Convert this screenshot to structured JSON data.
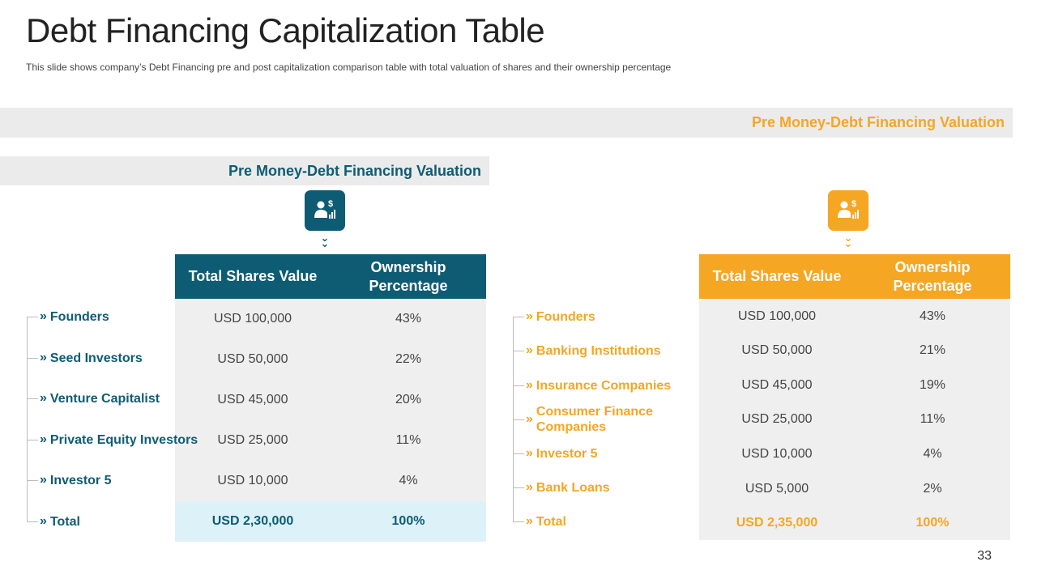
{
  "page": {
    "title": "Debt Financing Capitalization Table",
    "subtitle": "This slide shows company’s Debt Financing pre and post capitalization comparison table with total valuation  of shares and their ownership  percentage",
    "page_number": "33"
  },
  "colors": {
    "teal": "#0e5c73",
    "orange": "#f5a623",
    "band_gray": "#ebebeb",
    "table_gray": "#efefef",
    "total_teal_bg": "#dcf2f8"
  },
  "bands": {
    "top": "Pre Money-Debt Financing Valuation",
    "left": "Pre Money-Debt Financing Valuation"
  },
  "icons": {
    "left": "investor-dollar-chart-icon",
    "right": "investor-dollar-chart-icon",
    "chevron": "double-chevron-down-icon",
    "bullet": "double-chevron-right-icon"
  },
  "left_table": {
    "headers": [
      "Total Shares Value",
      "Ownership Percentage"
    ],
    "rows": [
      {
        "label": "Founders",
        "value": "USD 100,000",
        "pct": "43%"
      },
      {
        "label": "Seed Investors",
        "value": "USD 50,000",
        "pct": "22%"
      },
      {
        "label": "Venture Capitalist",
        "value": "USD 45,000",
        "pct": "20%"
      },
      {
        "label": "Private Equity Investors",
        "value": "USD 25,000",
        "pct": "11%"
      },
      {
        "label": "Investor 5",
        "value": "USD 10,000",
        "pct": "4%"
      },
      {
        "label": "Total",
        "value": "USD 2,30,000",
        "pct": "100%"
      }
    ]
  },
  "right_table": {
    "headers": [
      "Total Shares Value",
      "Ownership Percentage"
    ],
    "rows": [
      {
        "label": "Founders",
        "value": "USD 100,000",
        "pct": "43%"
      },
      {
        "label": "Banking Institutions",
        "value": "USD 50,000",
        "pct": "21%"
      },
      {
        "label": "Insurance Companies",
        "value": "USD 45,000",
        "pct": "19%"
      },
      {
        "label": "Consumer Finance Companies",
        "value": "USD 25,000",
        "pct": "11%"
      },
      {
        "label": "Investor 5",
        "value": "USD 10,000",
        "pct": "4%"
      },
      {
        "label": "Bank Loans",
        "value": "USD 5,000",
        "pct": "2%"
      },
      {
        "label": "Total",
        "value": "USD 2,35,000",
        "pct": "100%"
      }
    ]
  }
}
